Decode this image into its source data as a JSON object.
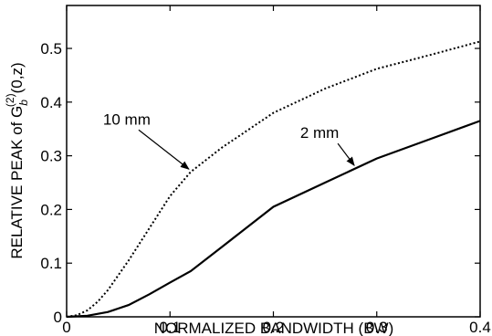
{
  "chart_data": {
    "type": "line",
    "title": "",
    "xlabel": "NORMALIZED BANDWIDTH (BW)",
    "ylabel_prefix": "RELATIVE PEAK of G",
    "ylabel_sub": "b",
    "ylabel_sup": "(2)",
    "ylabel_suffix": "(0,z)",
    "xlim": [
      0,
      0.4
    ],
    "ylim": [
      0,
      0.58
    ],
    "x_ticks": [
      0,
      0.1,
      0.2,
      0.3,
      0.4
    ],
    "x_tick_labels": [
      "0",
      "0.1",
      "0.2",
      "0.3",
      "0.4"
    ],
    "y_ticks": [
      0,
      0.1,
      0.2,
      0.3,
      0.4,
      0.5
    ],
    "y_tick_labels": [
      "0",
      "0.1",
      "0.2",
      "0.3",
      "0.4",
      "0.5"
    ],
    "grid": false,
    "series": [
      {
        "name": "10 mm",
        "style": "dotted",
        "x": [
          0,
          0.01,
          0.02,
          0.03,
          0.04,
          0.06,
          0.08,
          0.1,
          0.12,
          0.15,
          0.2,
          0.25,
          0.3,
          0.35,
          0.4
        ],
        "y": [
          0,
          0.003,
          0.012,
          0.028,
          0.05,
          0.105,
          0.165,
          0.225,
          0.27,
          0.315,
          0.38,
          0.425,
          0.462,
          0.487,
          0.513
        ]
      },
      {
        "name": "2 mm",
        "style": "solid",
        "x": [
          0,
          0.02,
          0.04,
          0.06,
          0.08,
          0.1,
          0.12,
          0.15,
          0.2,
          0.25,
          0.3,
          0.35,
          0.4
        ],
        "y": [
          0,
          0.002,
          0.009,
          0.022,
          0.042,
          0.064,
          0.085,
          0.13,
          0.205,
          0.25,
          0.295,
          0.33,
          0.365
        ]
      }
    ],
    "annotations": [
      {
        "text": "10 mm",
        "series": "10 mm",
        "at_x": 0.12
      },
      {
        "text": "2 mm",
        "series": "2 mm",
        "at_x": 0.28
      }
    ]
  }
}
